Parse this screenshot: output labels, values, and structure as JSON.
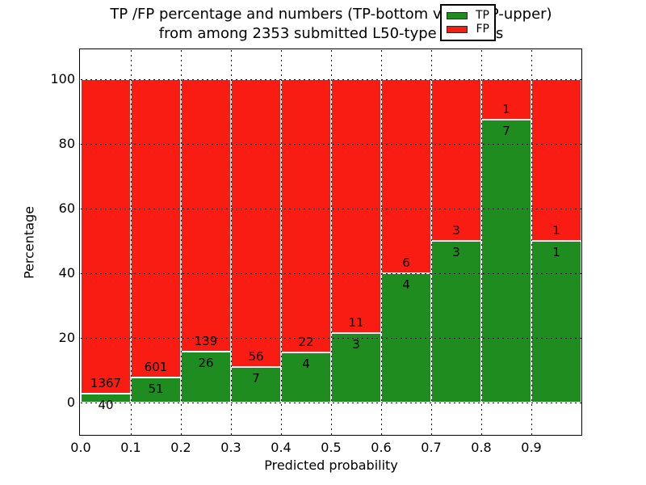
{
  "title": {
    "line1": "TP /FP percentage and numbers (TP-bottom value, FP-upper)",
    "line2": "from among 2353 submitted L50-type contacts"
  },
  "axes": {
    "xlabel": "Predicted probability",
    "ylabel": "Percentage",
    "x_tick_labels": [
      "0.0",
      "0.1",
      "0.2",
      "0.3",
      "0.4",
      "0.5",
      "0.6",
      "0.7",
      "0.8",
      "0.9"
    ],
    "y_tick_values": [
      0,
      20,
      40,
      60,
      80,
      100
    ],
    "y_tick_labels": [
      "0",
      "20",
      "40",
      "60",
      "80",
      "100"
    ]
  },
  "legend": {
    "items": [
      {
        "label": "TP",
        "color": "#1f8c1f"
      },
      {
        "label": "FP",
        "color": "#f91c12"
      }
    ]
  },
  "colors": {
    "tp_green": "#1f8c1f",
    "fp_red": "#f91c12",
    "grid": "#000000"
  },
  "chart_data": {
    "type": "bar",
    "stacked": true,
    "normalized_to_percent": true,
    "title": "TP /FP percentage and numbers (TP-bottom value, FP-upper) from among 2353 submitted L50-type contacts",
    "xlabel": "Predicted probability",
    "ylabel": "Percentage",
    "xlim": [
      0.0,
      1.0
    ],
    "ylabel_range": [
      0,
      100
    ],
    "grid": "dotted, on top of bars",
    "legend_position": "upper right",
    "bin_width": 0.1,
    "categories": [
      "0.0-0.1",
      "0.1-0.2",
      "0.2-0.3",
      "0.3-0.4",
      "0.4-0.5",
      "0.5-0.6",
      "0.6-0.7",
      "0.7-0.8",
      "0.8-0.9",
      "0.9-1.0"
    ],
    "series": [
      {
        "name": "TP",
        "color": "#1f8c1f",
        "counts": [
          40,
          51,
          26,
          7,
          4,
          3,
          4,
          3,
          7,
          1
        ]
      },
      {
        "name": "FP",
        "color": "#f91c12",
        "counts": [
          1367,
          601,
          139,
          56,
          22,
          11,
          6,
          3,
          1,
          1
        ]
      }
    ],
    "total_contacts": 2353
  }
}
